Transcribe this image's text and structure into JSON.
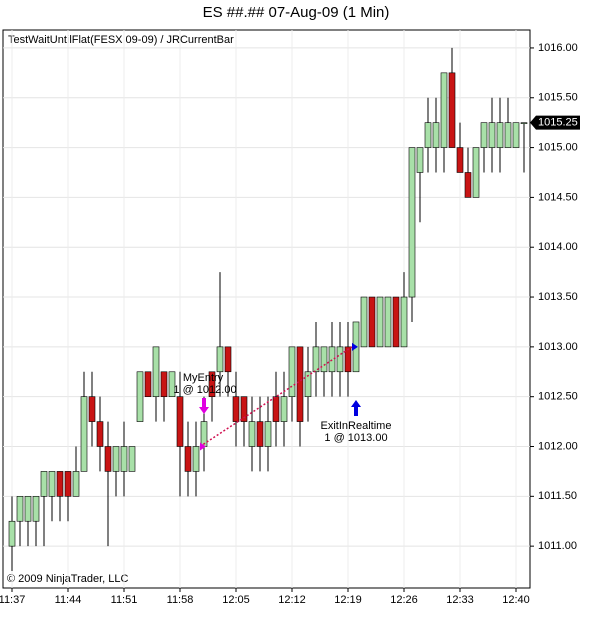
{
  "chart_data": {
    "type": "candlestick",
    "title": "ES ##.##  07-Aug-09 (1 Min)",
    "subtitle": "TestWaitUntilFlat(FESX 09-09) / JRCurrentBar",
    "copyright": "© 2009 NinjaTrader, LLC",
    "x": [
      "11:37",
      null,
      null,
      null,
      null,
      null,
      null,
      "11:44",
      null,
      null,
      null,
      null,
      null,
      null,
      "11:51",
      null,
      null,
      null,
      null,
      null,
      null,
      "11:58",
      null,
      null,
      null,
      null,
      null,
      null,
      "12:05",
      null,
      null,
      null,
      null,
      null,
      null,
      "12:12",
      null,
      null,
      null,
      null,
      null,
      null,
      "12:19",
      null,
      null,
      null,
      null,
      null,
      null,
      "12:26",
      null,
      null,
      null,
      null,
      null,
      null,
      "12:33",
      null,
      null,
      null,
      null,
      null,
      null,
      "12:40",
      null
    ],
    "open": [
      1011,
      1011.25,
      1011.25,
      1011.25,
      1011.5,
      1011.5,
      1011.75,
      1011.75,
      1011.5,
      1011.75,
      1012.5,
      1012.25,
      1012,
      1011.75,
      1011.75,
      1011.75,
      1012.25,
      1012.75,
      1012.5,
      1012.75,
      1012.5,
      1012.5,
      1012,
      1011.75,
      1012,
      1012.75,
      1012.75,
      1013,
      1012.5,
      1012.5,
      1012,
      1012.25,
      1012,
      1012.5,
      1012.25,
      1012.5,
      1013,
      1012.5,
      1012.75,
      1012.75,
      1012.75,
      1012.75,
      1013,
      1012.75,
      1013,
      1013.5,
      1013,
      1013,
      1013.5,
      1013,
      1013.5,
      1014.75,
      1015,
      1015,
      1015,
      1015.75,
      1015,
      1014.75,
      1014.5,
      1015,
      1015,
      1015,
      1015,
      1015,
      1015.25
    ],
    "high": [
      1011.5,
      1011.5,
      1011.5,
      1011.5,
      1011.75,
      1011.75,
      1011.75,
      1011.75,
      1012,
      1012.75,
      1012.75,
      1012.5,
      1012.25,
      1012,
      1012.25,
      1012,
      1012.75,
      1012.75,
      1013,
      1012.75,
      1012.75,
      1012.75,
      1012.25,
      1012.25,
      1012.5,
      1012.75,
      1013.75,
      1013,
      1012.75,
      1012.5,
      1012.5,
      1012.5,
      1012.5,
      1012.75,
      1012.75,
      1013,
      1013,
      1013,
      1013.25,
      1013,
      1013.25,
      1013.25,
      1013.25,
      1013.25,
      1013.5,
      1013.5,
      1013.5,
      1013.5,
      1013.5,
      1013.75,
      1015,
      1015,
      1015.5,
      1015.5,
      1015.75,
      1016,
      1015.25,
      1015,
      1015,
      1015.25,
      1015.5,
      1015.5,
      1015.5,
      1015.25,
      1015.25
    ],
    "low": [
      1010.75,
      1011,
      1011,
      1011,
      1011,
      1011.25,
      1011.25,
      1011.25,
      1011.5,
      1011.75,
      1012,
      1011.75,
      1011,
      1011.5,
      1011.5,
      1011.75,
      1012.25,
      1012.5,
      1012.25,
      1012.25,
      1012.5,
      1011.5,
      1011.5,
      1011.5,
      1011.75,
      1012.25,
      1012.5,
      1012.5,
      1012,
      1012,
      1011.75,
      1011.75,
      1011.75,
      1012,
      1012,
      1012.25,
      1012,
      1012.25,
      1012.5,
      1012.5,
      1012.5,
      1012.5,
      1012.5,
      1012.75,
      1013,
      1013,
      1013,
      1013,
      1013,
      1013,
      1013.25,
      1014.25,
      1014.75,
      1014.75,
      1014.75,
      1015,
      1014.75,
      1014.5,
      1014.5,
      1014.75,
      1014.75,
      1014.75,
      1015,
      1015,
      1014.75
    ],
    "close": [
      1011.25,
      1011.5,
      1011.5,
      1011.5,
      1011.75,
      1011.75,
      1011.5,
      1011.5,
      1011.75,
      1012.5,
      1012.25,
      1012,
      1011.75,
      1012,
      1012,
      1012,
      1012.75,
      1012.5,
      1013,
      1012.5,
      1012.75,
      1012,
      1011.75,
      1012,
      1012.25,
      1012.5,
      1013,
      1012.75,
      1012.25,
      1012.25,
      1012.25,
      1012,
      1012.25,
      1012.25,
      1012.5,
      1013,
      1012.25,
      1012.75,
      1013,
      1013,
      1013,
      1013,
      1012.75,
      1013.25,
      1013.5,
      1013,
      1013.5,
      1013.5,
      1013,
      1013.5,
      1015,
      1015,
      1015.25,
      1015.25,
      1015.75,
      1015,
      1014.75,
      1014.5,
      1015,
      1015.25,
      1015.25,
      1015.25,
      1015.25,
      1015.25,
      1015.25
    ],
    "up_color": "#a8e0a8",
    "down_color": "#c81414",
    "ylim": [
      1010.58,
      1016.18
    ],
    "yticks": [
      {
        "value": 1011,
        "label": "1011.00"
      },
      {
        "value": 1011.5,
        "label": "1011.50"
      },
      {
        "value": 1012,
        "label": "1012.00"
      },
      {
        "value": 1012.5,
        "label": "1012.50"
      },
      {
        "value": 1013,
        "label": "1013.00"
      },
      {
        "value": 1013.5,
        "label": "1013.50"
      },
      {
        "value": 1014,
        "label": "1014.00"
      },
      {
        "value": 1014.5,
        "label": "1014.50"
      },
      {
        "value": 1015,
        "label": "1015.00"
      },
      {
        "value": 1015.5,
        "label": "1015.50"
      },
      {
        "value": 1016,
        "label": "1016.00"
      }
    ],
    "last_price": 1015.25,
    "grid": true,
    "trades": [
      {
        "name": "MyEntry",
        "label": "1 @ 1012.00",
        "price": 1012,
        "color": "#e000e0"
      },
      {
        "name": "ExitInRealtime",
        "label": "1 @ 1013.00",
        "price": 1013,
        "color": "#0000e0"
      }
    ]
  }
}
